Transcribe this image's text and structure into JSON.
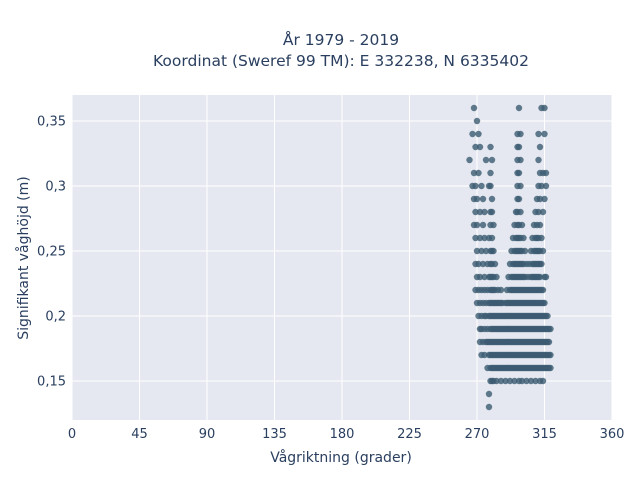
{
  "chart_data": {
    "type": "scatter",
    "title_line1": "År 1979 - 2019",
    "title_line2": "Koordinat (Sweref 99 TM): E 332238, N 6335402",
    "xlabel": "Vågriktning (grader)",
    "ylabel": "Signifikant våghöjd (m)",
    "xlim": [
      0,
      360
    ],
    "ylim": [
      0.12,
      0.37
    ],
    "x_ticks": [
      0,
      45,
      90,
      135,
      180,
      225,
      270,
      315,
      360
    ],
    "x_tick_labels": [
      "0",
      "45",
      "90",
      "135",
      "180",
      "225",
      "270",
      "315",
      "360"
    ],
    "y_ticks": [
      0.15,
      0.2,
      0.25,
      0.3,
      0.35
    ],
    "y_tick_labels": [
      "0,15",
      "0,2",
      "0,25",
      "0,3",
      "0,35"
    ],
    "grid": true,
    "marker_color": "#3c5b72",
    "plot_bg": "#e5e8f0",
    "columns": [
      {
        "x": 265,
        "y": [
          0.32
        ]
      },
      {
        "x": 267,
        "y": [
          0.3,
          0.34
        ]
      },
      {
        "x": 268,
        "y": [
          0.27,
          0.29,
          0.31,
          0.36
        ]
      },
      {
        "x": 269,
        "y": [
          0.22,
          0.24,
          0.26,
          0.28,
          0.3,
          0.33
        ]
      },
      {
        "x": 270,
        "y": [
          0.21,
          0.23,
          0.25,
          0.27,
          0.29,
          0.35
        ]
      },
      {
        "x": 271,
        "y": [
          0.2,
          0.22,
          0.24,
          0.31,
          0.34
        ]
      },
      {
        "x": 272,
        "y": [
          0.18,
          0.19,
          0.21,
          0.23,
          0.26,
          0.28,
          0.33
        ]
      },
      {
        "x": 273,
        "y": [
          0.17,
          0.19,
          0.2,
          0.22,
          0.25,
          0.3
        ]
      },
      {
        "x": 274,
        "y": [
          0.18,
          0.21,
          0.24,
          0.27,
          0.29
        ]
      },
      {
        "x": 275,
        "y": [
          0.17,
          0.19,
          0.2,
          0.22,
          0.23,
          0.26,
          0.28
        ]
      },
      {
        "x": 276,
        "y": [
          0.18,
          0.2,
          0.21,
          0.25,
          0.32
        ]
      },
      {
        "x": 277,
        "y": [
          0.16,
          0.18,
          0.19,
          0.22,
          0.24
        ]
      },
      {
        "x": 278,
        "y": [
          0.17,
          0.18,
          0.2,
          0.21,
          0.23,
          0.26,
          0.3,
          0.13,
          0.14
        ]
      },
      {
        "x": 279,
        "y": [
          0.15,
          0.16,
          0.17,
          0.18,
          0.19,
          0.2,
          0.21,
          0.22,
          0.23,
          0.24,
          0.25,
          0.27,
          0.28,
          0.3,
          0.31,
          0.33
        ]
      },
      {
        "x": 280,
        "y": [
          0.15,
          0.16,
          0.17,
          0.18,
          0.19,
          0.2,
          0.21,
          0.22,
          0.23,
          0.24,
          0.25,
          0.26,
          0.28,
          0.29,
          0.32
        ]
      },
      {
        "x": 281,
        "y": [
          0.15,
          0.16,
          0.17,
          0.18,
          0.19,
          0.2,
          0.21,
          0.22,
          0.23,
          0.25,
          0.27
        ]
      },
      {
        "x": 282,
        "y": [
          0.16,
          0.17,
          0.18,
          0.19,
          0.2,
          0.21,
          0.22,
          0.24
        ]
      },
      {
        "x": 283,
        "y": [
          0.15,
          0.16,
          0.17,
          0.18,
          0.19,
          0.2,
          0.21,
          0.23
        ]
      },
      {
        "x": 284,
        "y": [
          0.16,
          0.17,
          0.18,
          0.19,
          0.2,
          0.21,
          0.22
        ]
      },
      {
        "x": 285,
        "y": [
          0.16,
          0.17,
          0.18,
          0.19,
          0.2,
          0.21
        ]
      },
      {
        "x": 286,
        "y": [
          0.15,
          0.16,
          0.17,
          0.18,
          0.19,
          0.2,
          0.21,
          0.22
        ]
      },
      {
        "x": 287,
        "y": [
          0.16,
          0.17,
          0.18,
          0.19,
          0.2,
          0.21
        ]
      },
      {
        "x": 288,
        "y": [
          0.16,
          0.17,
          0.18,
          0.19,
          0.2
        ]
      },
      {
        "x": 289,
        "y": [
          0.15,
          0.16,
          0.17,
          0.18,
          0.19,
          0.2,
          0.21
        ]
      },
      {
        "x": 290,
        "y": [
          0.16,
          0.17,
          0.18,
          0.19,
          0.2,
          0.21,
          0.22
        ]
      },
      {
        "x": 291,
        "y": [
          0.16,
          0.17,
          0.18,
          0.19,
          0.2,
          0.21,
          0.23
        ]
      },
      {
        "x": 292,
        "y": [
          0.15,
          0.16,
          0.17,
          0.18,
          0.19,
          0.2,
          0.21,
          0.22,
          0.24
        ]
      },
      {
        "x": 293,
        "y": [
          0.16,
          0.17,
          0.18,
          0.19,
          0.2,
          0.21,
          0.22,
          0.23,
          0.25
        ]
      },
      {
        "x": 294,
        "y": [
          0.16,
          0.17,
          0.18,
          0.19,
          0.2,
          0.21,
          0.22,
          0.23,
          0.24,
          0.26
        ]
      },
      {
        "x": 295,
        "y": [
          0.15,
          0.16,
          0.17,
          0.18,
          0.19,
          0.2,
          0.21,
          0.22,
          0.23,
          0.24,
          0.25,
          0.27
        ]
      },
      {
        "x": 296,
        "y": [
          0.16,
          0.17,
          0.18,
          0.19,
          0.2,
          0.21,
          0.22,
          0.23,
          0.24,
          0.25,
          0.26,
          0.28
        ]
      },
      {
        "x": 297,
        "y": [
          0.16,
          0.17,
          0.18,
          0.19,
          0.2,
          0.21,
          0.22,
          0.23,
          0.24,
          0.25,
          0.26,
          0.27,
          0.28,
          0.29,
          0.3,
          0.31,
          0.32,
          0.33,
          0.34
        ]
      },
      {
        "x": 298,
        "y": [
          0.15,
          0.16,
          0.17,
          0.18,
          0.19,
          0.2,
          0.21,
          0.22,
          0.23,
          0.24,
          0.25,
          0.26,
          0.27,
          0.29,
          0.31,
          0.33,
          0.36
        ]
      },
      {
        "x": 299,
        "y": [
          0.16,
          0.17,
          0.18,
          0.19,
          0.2,
          0.21,
          0.22,
          0.23,
          0.24,
          0.25,
          0.26,
          0.28,
          0.3,
          0.32,
          0.34
        ]
      },
      {
        "x": 300,
        "y": [
          0.15,
          0.16,
          0.17,
          0.18,
          0.19,
          0.2,
          0.21,
          0.22,
          0.23,
          0.24,
          0.25,
          0.27
        ]
      },
      {
        "x": 301,
        "y": [
          0.16,
          0.17,
          0.18,
          0.19,
          0.2,
          0.21,
          0.22,
          0.23,
          0.24,
          0.26
        ]
      },
      {
        "x": 302,
        "y": [
          0.16,
          0.17,
          0.18,
          0.19,
          0.2,
          0.21,
          0.22,
          0.23,
          0.25
        ]
      },
      {
        "x": 303,
        "y": [
          0.15,
          0.16,
          0.17,
          0.18,
          0.19,
          0.2,
          0.21,
          0.22,
          0.24
        ]
      },
      {
        "x": 304,
        "y": [
          0.16,
          0.17,
          0.18,
          0.19,
          0.2,
          0.21,
          0.22,
          0.23
        ]
      },
      {
        "x": 305,
        "y": [
          0.16,
          0.17,
          0.18,
          0.19,
          0.2,
          0.21,
          0.22,
          0.24
        ]
      },
      {
        "x": 306,
        "y": [
          0.15,
          0.16,
          0.17,
          0.18,
          0.19,
          0.2,
          0.21,
          0.22,
          0.23,
          0.25
        ]
      },
      {
        "x": 307,
        "y": [
          0.16,
          0.17,
          0.18,
          0.19,
          0.2,
          0.21,
          0.22,
          0.23,
          0.24,
          0.26
        ]
      },
      {
        "x": 308,
        "y": [
          0.16,
          0.17,
          0.18,
          0.19,
          0.2,
          0.21,
          0.22,
          0.23,
          0.24,
          0.25,
          0.27
        ]
      },
      {
        "x": 309,
        "y": [
          0.15,
          0.16,
          0.17,
          0.18,
          0.19,
          0.2,
          0.21,
          0.22,
          0.23,
          0.24,
          0.25,
          0.26,
          0.28
        ]
      },
      {
        "x": 310,
        "y": [
          0.16,
          0.17,
          0.18,
          0.19,
          0.2,
          0.21,
          0.22,
          0.23,
          0.24,
          0.25,
          0.26,
          0.27,
          0.29
        ]
      },
      {
        "x": 311,
        "y": [
          0.16,
          0.17,
          0.18,
          0.19,
          0.2,
          0.21,
          0.22,
          0.23,
          0.24,
          0.25,
          0.26,
          0.28,
          0.3,
          0.32,
          0.34
        ]
      },
      {
        "x": 312,
        "y": [
          0.15,
          0.16,
          0.17,
          0.18,
          0.19,
          0.2,
          0.21,
          0.22,
          0.23,
          0.24,
          0.25,
          0.27,
          0.29,
          0.31,
          0.33
        ]
      },
      {
        "x": 313,
        "y": [
          0.16,
          0.17,
          0.18,
          0.19,
          0.2,
          0.21,
          0.22,
          0.24,
          0.26,
          0.3,
          0.36
        ]
      },
      {
        "x": 314,
        "y": [
          0.15,
          0.16,
          0.17,
          0.18,
          0.19,
          0.2,
          0.21,
          0.22,
          0.25,
          0.28,
          0.31
        ]
      },
      {
        "x": 315,
        "y": [
          0.16,
          0.17,
          0.18,
          0.19,
          0.2,
          0.21,
          0.23,
          0.29,
          0.34,
          0.36
        ]
      },
      {
        "x": 316,
        "y": [
          0.16,
          0.17,
          0.18,
          0.19,
          0.2,
          0.23,
          0.3,
          0.31
        ]
      },
      {
        "x": 317,
        "y": [
          0.16,
          0.17,
          0.18,
          0.19,
          0.2
        ]
      },
      {
        "x": 318,
        "y": [
          0.16,
          0.17,
          0.18,
          0.19
        ]
      },
      {
        "x": 319,
        "y": [
          0.16,
          0.17,
          0.19
        ]
      }
    ]
  }
}
